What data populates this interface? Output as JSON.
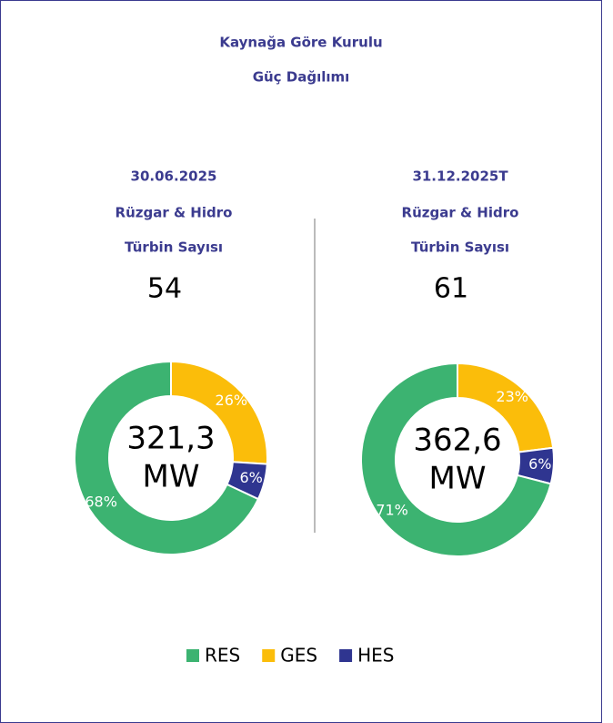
{
  "title": [
    "Kaynağa Göre Kurulu",
    "Güç Dağılımı"
  ],
  "chart_data": [
    {
      "type": "pie",
      "donut": true,
      "date": "30.06.2025",
      "subtitle": [
        "Rüzgar & Hidro",
        "Türbin Sayısı"
      ],
      "turbine_count": 54,
      "center_value": "321,3",
      "center_unit": "MW",
      "categories": [
        "GES",
        "HES",
        "RES"
      ],
      "values": [
        26,
        6,
        68
      ],
      "value_labels": [
        "26%",
        "6%",
        "68%"
      ],
      "colors": [
        "#fbbd0a",
        "#2f3590",
        "#3cb371"
      ]
    },
    {
      "type": "pie",
      "donut": true,
      "date": "31.12.2025T",
      "subtitle": [
        "Rüzgar & Hidro",
        "Türbin Sayısı"
      ],
      "turbine_count": 61,
      "center_value": "362,6",
      "center_unit": "MW",
      "categories": [
        "GES",
        "HES",
        "RES"
      ],
      "values": [
        23,
        6,
        71
      ],
      "value_labels": [
        "23%",
        "6%",
        "71%"
      ],
      "colors": [
        "#fbbd0a",
        "#2f3590",
        "#3cb371"
      ]
    }
  ],
  "legend": {
    "order": [
      2,
      0,
      1
    ]
  }
}
